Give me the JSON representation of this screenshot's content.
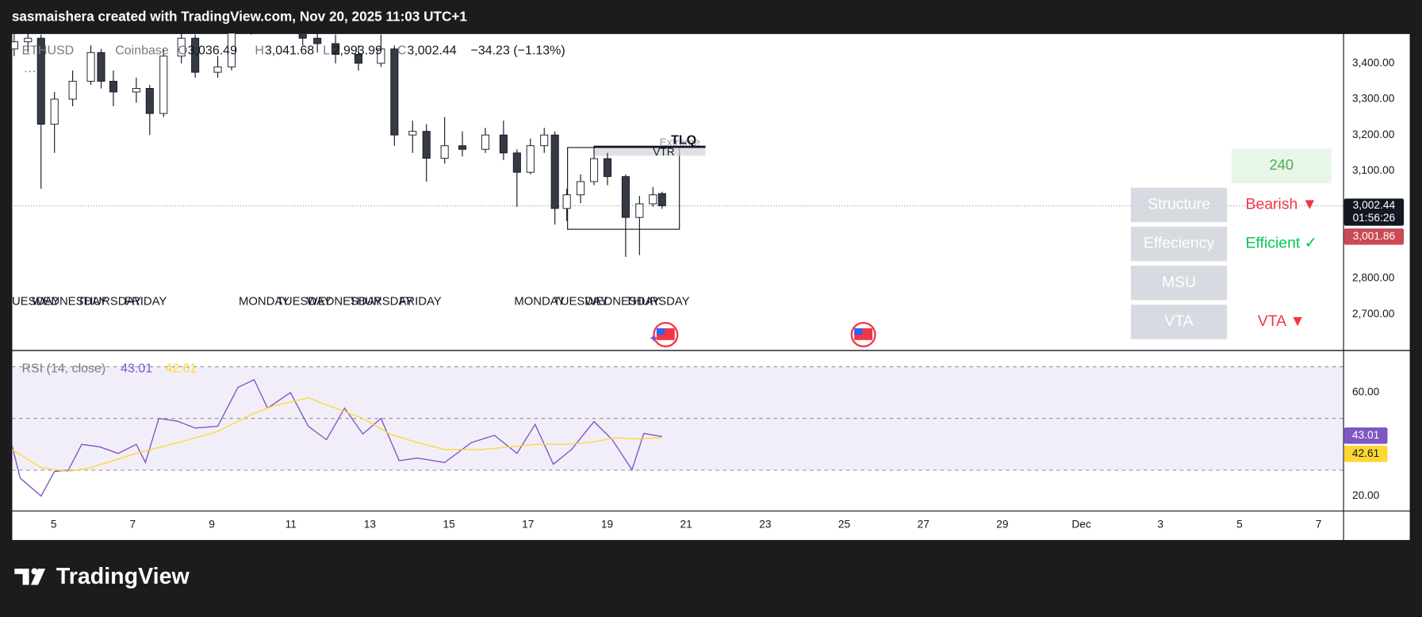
{
  "header": {
    "text": "sasmaishera created with TradingView.com, Nov 20, 2025 11:03 UTC+1"
  },
  "footer": {
    "logo": "TradingView"
  },
  "panel": {
    "timeframe": 240,
    "rows": [
      {
        "label": "Structure",
        "value": "Bearish ▼",
        "color": "#f23645"
      },
      {
        "label": "Effeciency",
        "value": "Efficient ✓",
        "color": "#00c853"
      },
      {
        "label": "MSU"
      },
      {
        "label": "VTA",
        "value": "VTA ▼",
        "color": "#f23645"
      }
    ]
  },
  "chart_data": [
    {
      "type": "candlestick",
      "symbol": "ETHUSD",
      "exchange": "Coinbase",
      "ohlc_legend": {
        "keys": [
          "O",
          "H",
          "L",
          "C"
        ],
        "values": [
          3036.49,
          3041.68,
          2993.99,
          3002.44
        ],
        "value_labels": [
          "3,036.49",
          "3,041.68",
          "2,993.99",
          "3,002.44"
        ],
        "change": "−34.23 (−1.13%)"
      },
      "x": [
        4.0,
        4.35,
        4.68,
        5.02,
        5.48,
        5.94,
        6.2,
        6.51,
        7.09,
        7.43,
        7.78,
        8.23,
        8.58,
        9.15,
        9.5,
        10.0,
        10.5,
        11.0,
        11.3,
        11.67,
        12.13,
        12.71,
        13.28,
        13.62,
        14.08,
        14.43,
        14.89,
        15.34,
        15.92,
        16.38,
        16.72,
        17.06,
        17.41,
        17.68,
        17.98,
        18.33,
        18.67,
        19.01,
        19.47,
        19.82,
        20.16,
        20.39
      ],
      "open": [
        3440,
        3460,
        3470,
        3230,
        3300,
        3350,
        3430,
        3350,
        3320,
        3330,
        3260,
        3420,
        3470,
        3375,
        3390,
        3500,
        3560,
        3580,
        3520,
        3470,
        3455,
        3425,
        3400,
        3440,
        3200,
        3210,
        3135,
        3170,
        3160,
        3200,
        3150,
        3096,
        3170,
        3200,
        2995,
        3033,
        3070,
        3134,
        3084,
        2970,
        3008,
        3036.49
      ],
      "high": [
        3500,
        3490,
        3480,
        3320,
        3380,
        3450,
        3440,
        3380,
        3360,
        3340,
        3440,
        3510,
        3480,
        3420,
        3520,
        3600,
        3620,
        3600,
        3540,
        3500,
        3480,
        3450,
        3480,
        3450,
        3240,
        3230,
        3250,
        3210,
        3220,
        3240,
        3160,
        3190,
        3220,
        3210,
        3050,
        3090,
        3170,
        3150,
        3090,
        3030,
        3055,
        3041.68
      ],
      "low": [
        3420,
        3430,
        3050,
        3150,
        3280,
        3340,
        3330,
        3280,
        3290,
        3200,
        3250,
        3400,
        3360,
        3360,
        3380,
        3480,
        3520,
        3490,
        3450,
        3430,
        3400,
        3380,
        3390,
        3170,
        3150,
        3070,
        3120,
        3140,
        3150,
        3130,
        3000,
        3090,
        3150,
        2950,
        2960,
        3010,
        3060,
        3060,
        2860,
        2865,
        3000,
        2993.99
      ],
      "close": [
        3460,
        3470,
        3230,
        3300,
        3350,
        3430,
        3350,
        3320,
        3330,
        3260,
        3420,
        3470,
        3375,
        3390,
        3500,
        3560,
        3580,
        3520,
        3470,
        3455,
        3425,
        3400,
        3440,
        3200,
        3210,
        3135,
        3170,
        3160,
        3200,
        3150,
        3096,
        3170,
        3200,
        2995,
        3033,
        3070,
        3134,
        3084,
        2970,
        3008,
        3033,
        3002.44
      ],
      "up_color": "#ffffff",
      "down_color": "#363a45",
      "xlim": [
        3.94,
        37.62
      ],
      "ylim": [
        2600,
        3483
      ],
      "yticks": [
        {
          "value": 2700,
          "label": "2,700.00"
        },
        {
          "value": 2800,
          "label": "2,800.00"
        },
        {
          "value": 3100,
          "label": "3,100.00"
        },
        {
          "value": 3200,
          "label": "3,200.00"
        },
        {
          "value": 3300,
          "label": "3,300.00"
        },
        {
          "value": 3400,
          "label": "3,400.00"
        }
      ],
      "last_price": {
        "value": 3002.44,
        "label": "3,002.44",
        "countdown": "01:56:26"
      },
      "bid_price": {
        "value": 3001.86,
        "label": "3,001.86"
      },
      "session_labels": [
        {
          "text": "TUESDAY",
          "x": 3.76
        },
        {
          "text": "WEDNESDAY",
          "x": 4.45
        },
        {
          "text": "THURSDAY",
          "x": 5.6
        },
        {
          "text": "FRIDAY",
          "x": 6.79
        },
        {
          "text": "MONDAY",
          "x": 9.68
        },
        {
          "text": "TUESDAY",
          "x": 10.64
        },
        {
          "text": "WEDNESDAY",
          "x": 11.4
        },
        {
          "text": "THURSDAY",
          "x": 12.48
        },
        {
          "text": "FRIDAY",
          "x": 13.74
        },
        {
          "text": "MONDAY",
          "x": 16.65
        },
        {
          "text": "TUESDAY",
          "x": 17.64
        },
        {
          "text": "WEDNESDAY",
          "x": 18.44
        },
        {
          "text": "THURSDAY",
          "x": 19.47
        }
      ],
      "box": {
        "x": [
          18.0,
          20.83
        ],
        "y": [
          2937,
          3165
        ]
      },
      "zone": {
        "label": "VTR",
        "x": [
          18.67,
          21.49
        ],
        "y": [
          3142,
          3165
        ]
      },
      "tlq": {
        "label": "TLQ",
        "sublabel": "Extreme",
        "x": [
          18.67,
          21.49
        ],
        "value": 3167
      }
    },
    {
      "type": "line",
      "title": "RSI (14, close)",
      "series": [
        {
          "color": "#7e57c2",
          "x": [
            3.94,
            4.15,
            4.68,
            5.02,
            5.37,
            5.71,
            6.17,
            6.63,
            7.09,
            7.32,
            7.66,
            8.12,
            8.58,
            9.15,
            9.66,
            10.07,
            10.41,
            10.99,
            11.44,
            11.9,
            12.36,
            12.82,
            13.28,
            13.74,
            14.2,
            14.89,
            15.57,
            16.15,
            16.72,
            17.18,
            17.64,
            18.1,
            18.67,
            19.13,
            19.63,
            19.93,
            20.39
          ],
          "values": [
            40,
            27,
            20,
            29.5,
            30,
            40,
            39,
            36.5,
            40,
            33,
            50,
            49,
            46.3,
            47,
            62,
            65,
            54,
            60,
            47,
            41.8,
            54,
            44,
            50,
            33.7,
            34.7,
            33,
            40.7,
            43.5,
            36.5,
            47.7,
            32.3,
            38,
            48.8,
            41.8,
            30.2,
            44.2,
            43.01
          ]
        },
        {
          "color": "#fdd835",
          "x": [
            3.94,
            4.68,
            5.37,
            5.94,
            7.09,
            8.23,
            9.15,
            10.07,
            10.53,
            11.44,
            12.13,
            12.82,
            13.51,
            14.2,
            14.89,
            15.8,
            16.49,
            17.18,
            17.87,
            18.56,
            19.24,
            19.7,
            20.39
          ],
          "values": [
            38,
            31,
            29.5,
            31,
            36.5,
            41,
            45,
            52,
            54.7,
            58,
            54,
            50,
            44,
            40.7,
            38,
            38,
            38.9,
            40,
            40,
            40.7,
            42.5,
            42.1,
            42.61
          ]
        }
      ],
      "levels": [
        70,
        50,
        30
      ],
      "xlim": [
        3.94,
        37.62
      ],
      "ylim": [
        14.4,
        76.1
      ],
      "yticks": [
        {
          "value": 20,
          "label": "20.00"
        },
        {
          "value": 60,
          "label": "60.00"
        }
      ],
      "xticks": [
        5,
        7,
        9,
        11,
        13,
        15,
        17,
        19,
        21,
        23,
        25,
        27,
        29,
        {
          "value": 31,
          "label": "Dec"
        },
        {
          "value": 33,
          "label": "3"
        },
        {
          "value": 35,
          "label": "5"
        },
        {
          "value": 37,
          "label": "7"
        }
      ]
    }
  ]
}
